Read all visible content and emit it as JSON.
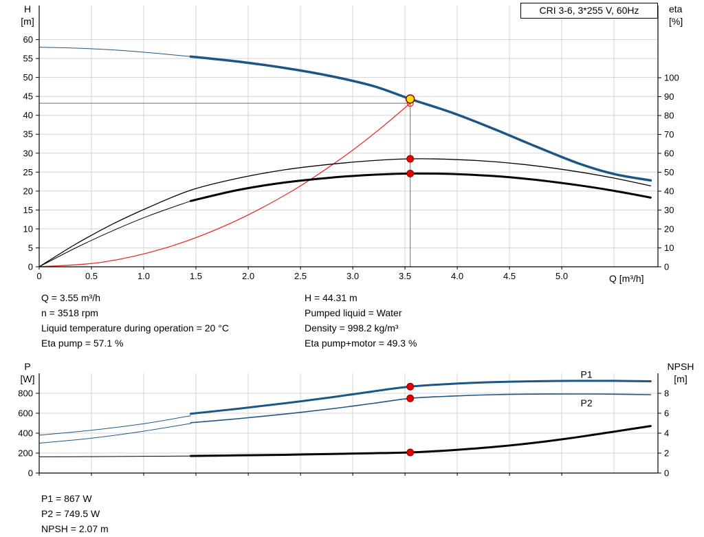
{
  "title_box": "CRI 3-6, 3*255 V, 60Hz",
  "colors": {
    "curve_blue": "#1c5687",
    "curve_red": "#e8302a",
    "curve_black": "#000000",
    "crosshair": "#6e6e6e",
    "grid": "#d3d3d3",
    "axis": "#000000"
  },
  "marker_styles": {
    "red": {
      "r": 5,
      "fill": "#e60000",
      "stroke": "#8b0000",
      "sw": 1
    },
    "yellow": {
      "r": 6,
      "fill": "#ffdf00",
      "stroke": "#8b0000",
      "sw": 1.5
    },
    "open_red": {
      "r": 4.5,
      "fill": "none",
      "stroke": "#e8302a",
      "sw": 1.3
    }
  },
  "chart_data": [
    {
      "type": "line",
      "title": "CRI 3-6, 3*255 V, 60Hz",
      "x_axis": {
        "label": "Q [m³/h]",
        "min": 0,
        "max": 5.92,
        "ticks": [
          0,
          0.5,
          1,
          1.5,
          2,
          2.5,
          3,
          3.5,
          4,
          4.5,
          5
        ],
        "tick_labels": [
          "0",
          "0.5",
          "1.0",
          "1.5",
          "2.0",
          "2.5",
          "3.0",
          "3.5",
          "4.0",
          "4.5",
          "5.0"
        ],
        "grid": [
          0.5,
          1,
          1.5,
          2,
          2.5,
          3,
          3.5,
          4,
          4.5,
          5,
          5.5
        ]
      },
      "y_left": {
        "label_lines": [
          "H",
          "[m]"
        ],
        "min": 0,
        "max": 69,
        "ticks": [
          0,
          5,
          10,
          15,
          20,
          25,
          30,
          35,
          40,
          45,
          50,
          55,
          60
        ],
        "grid": [
          5,
          10,
          15,
          20,
          25,
          30,
          35,
          40,
          45,
          50,
          55,
          60
        ]
      },
      "y_right": {
        "label_lines": [
          "eta",
          "[%]"
        ],
        "min": 0,
        "max": 138.2,
        "ticks": [
          0,
          10,
          20,
          30,
          40,
          50,
          60,
          70,
          80,
          90,
          100
        ]
      },
      "series": [
        {
          "name": "crosshair-horizontal-line",
          "axis": "left",
          "color": "#6e6e6e",
          "width": 1,
          "straight": true,
          "points": [
            [
              0,
              43.2
            ],
            [
              3.55,
              43.2
            ]
          ]
        },
        {
          "name": "crosshair-vertical-line",
          "axis": "left",
          "color": "#6e6e6e",
          "width": 1,
          "straight": true,
          "points": [
            [
              3.55,
              0
            ],
            [
              3.55,
              44.31
            ]
          ]
        },
        {
          "name": "system-curve",
          "axis": "left",
          "color": "#e8302a",
          "width": 1.3,
          "points": [
            [
              0,
              0
            ],
            [
              0.6,
              1.2
            ],
            [
              1.2,
              4.9
            ],
            [
              1.8,
              11.1
            ],
            [
              2.4,
              19.7
            ],
            [
              2.9,
              28.8
            ],
            [
              3.25,
              36.2
            ],
            [
              3.55,
              43.2
            ]
          ]
        },
        {
          "name": "eta-pump-curve",
          "axis": "right",
          "color": "#000000",
          "width": 1.3,
          "points": [
            [
              0,
              0
            ],
            [
              0.35,
              12
            ],
            [
              0.7,
              22.5
            ],
            [
              1.05,
              31.5
            ],
            [
              1.45,
              40.5
            ],
            [
              1.9,
              46.8
            ],
            [
              2.35,
              51.3
            ],
            [
              2.8,
              54.3
            ],
            [
              3.2,
              56.2
            ],
            [
              3.55,
              57.1
            ],
            [
              3.95,
              56.8
            ],
            [
              4.35,
              55.6
            ],
            [
              4.75,
              53.4
            ],
            [
              5.15,
              50.3
            ],
            [
              5.5,
              46.9
            ],
            [
              5.85,
              42.8
            ]
          ]
        },
        {
          "name": "eta-pump-motor-curve-lead",
          "axis": "right",
          "color": "#000000",
          "width": 1,
          "points": [
            [
              0,
              0
            ],
            [
              0.35,
              10
            ],
            [
              0.7,
              19
            ],
            [
              1.05,
              27
            ],
            [
              1.45,
              34.8
            ]
          ]
        },
        {
          "name": "eta-pump-motor-curve",
          "axis": "right",
          "color": "#000000",
          "width": 3,
          "points": [
            [
              1.45,
              34.8
            ],
            [
              1.9,
              40.6
            ],
            [
              2.35,
              44.6
            ],
            [
              2.8,
              47.2
            ],
            [
              3.2,
              48.7
            ],
            [
              3.55,
              49.3
            ],
            [
              3.95,
              49.1
            ],
            [
              4.35,
              48.0
            ],
            [
              4.75,
              46.0
            ],
            [
              5.15,
              43.2
            ],
            [
              5.5,
              40.2
            ],
            [
              5.85,
              36.6
            ]
          ]
        },
        {
          "name": "qh-curve-lead",
          "axis": "left",
          "color": "#1c5687",
          "width": 1,
          "points": [
            [
              0,
              58
            ],
            [
              0.4,
              57.7
            ],
            [
              0.8,
              57.1
            ],
            [
              1.15,
              56.3
            ],
            [
              1.45,
              55.5
            ]
          ]
        },
        {
          "name": "qh-curve",
          "axis": "left",
          "color": "#1c5687",
          "width": 3.5,
          "points": [
            [
              1.45,
              55.5
            ],
            [
              1.9,
              54.2
            ],
            [
              2.35,
              52.5
            ],
            [
              2.8,
              50.3
            ],
            [
              3.2,
              47.7
            ],
            [
              3.55,
              44.31
            ],
            [
              3.95,
              40.7
            ],
            [
              4.35,
              36.4
            ],
            [
              4.75,
              31.8
            ],
            [
              5.15,
              27.4
            ],
            [
              5.5,
              24.5
            ],
            [
              5.85,
              22.8
            ]
          ]
        }
      ],
      "markers": [
        {
          "name": "intersection-point",
          "axis": "left",
          "x": 3.55,
          "y": 43.2,
          "style": "open_red"
        },
        {
          "name": "eta-pump-duty-point",
          "axis": "right",
          "x": 3.55,
          "y": 57.1,
          "style": "red"
        },
        {
          "name": "eta-pump-motor-duty-point",
          "axis": "right",
          "x": 3.55,
          "y": 49.3,
          "style": "red"
        },
        {
          "name": "duty-point",
          "axis": "left",
          "x": 3.55,
          "y": 44.31,
          "style": "yellow",
          "interactable": true
        }
      ],
      "labels": []
    },
    {
      "type": "line",
      "title": "Power and NPSH curves",
      "x_axis": {
        "label": "",
        "min": 0,
        "max": 5.92,
        "ticks": [
          0,
          0.5,
          1,
          1.5,
          2,
          2.5,
          3,
          3.5,
          4,
          4.5,
          5
        ],
        "tick_labels": [],
        "grid": [
          0.5,
          1,
          1.5,
          2,
          2.5,
          3,
          3.5,
          4,
          4.5,
          5,
          5.5
        ]
      },
      "y_left": {
        "label_lines": [
          "P",
          "[W]"
        ],
        "min": 0,
        "max": 1000,
        "ticks": [
          0,
          200,
          400,
          600,
          800
        ],
        "grid": [
          200,
          400,
          600,
          800
        ]
      },
      "y_right": {
        "label_lines": [
          "NPSH",
          "[m]"
        ],
        "min": 0,
        "max": 10,
        "ticks": [
          0,
          2,
          4,
          6,
          8
        ]
      },
      "series": [
        {
          "name": "p2-curve-lead",
          "axis": "left",
          "color": "#1c5687",
          "width": 1,
          "points": [
            [
              0,
              300
            ],
            [
              0.5,
              350
            ],
            [
              1.0,
              420
            ],
            [
              1.45,
              497
            ]
          ]
        },
        {
          "name": "p2-curve",
          "axis": "left",
          "color": "#1c5687",
          "width": 1.6,
          "points": [
            [
              1.45,
              505
            ],
            [
              1.9,
              545
            ],
            [
              2.35,
              592
            ],
            [
              2.8,
              645
            ],
            [
              3.2,
              700
            ],
            [
              3.55,
              749.5
            ],
            [
              3.95,
              772
            ],
            [
              4.35,
              786
            ],
            [
              4.75,
              792
            ],
            [
              5.15,
              793
            ],
            [
              5.5,
              791
            ],
            [
              5.85,
              786
            ]
          ]
        },
        {
          "name": "p1-curve-lead",
          "axis": "left",
          "color": "#1c5687",
          "width": 1,
          "points": [
            [
              0,
              380
            ],
            [
              0.5,
              430
            ],
            [
              1.0,
              495
            ],
            [
              1.45,
              575
            ]
          ]
        },
        {
          "name": "p1-curve",
          "axis": "left",
          "color": "#1c5687",
          "width": 3,
          "points": [
            [
              1.45,
              595
            ],
            [
              1.9,
              645
            ],
            [
              2.35,
              700
            ],
            [
              2.8,
              760
            ],
            [
              3.2,
              820
            ],
            [
              3.55,
              867
            ],
            [
              3.95,
              895
            ],
            [
              4.35,
              912
            ],
            [
              4.75,
              921
            ],
            [
              5.15,
              925
            ],
            [
              5.5,
              925
            ],
            [
              5.85,
              921
            ]
          ]
        },
        {
          "name": "npsh-curve-lead",
          "axis": "right",
          "color": "#000000",
          "width": 1,
          "points": [
            [
              0,
              1.63
            ],
            [
              0.5,
              1.65
            ],
            [
              1.0,
              1.68
            ],
            [
              1.45,
              1.71
            ]
          ]
        },
        {
          "name": "npsh-curve",
          "axis": "right",
          "color": "#000000",
          "width": 3,
          "points": [
            [
              1.45,
              1.72
            ],
            [
              1.9,
              1.77
            ],
            [
              2.35,
              1.83
            ],
            [
              2.8,
              1.92
            ],
            [
              3.2,
              1.99
            ],
            [
              3.55,
              2.07
            ],
            [
              3.95,
              2.3
            ],
            [
              4.35,
              2.62
            ],
            [
              4.75,
              3.05
            ],
            [
              5.15,
              3.6
            ],
            [
              5.5,
              4.15
            ],
            [
              5.85,
              4.72
            ]
          ]
        }
      ],
      "markers": [
        {
          "name": "p1-duty-point",
          "axis": "left",
          "x": 3.55,
          "y": 867,
          "style": "red"
        },
        {
          "name": "p2-duty-point",
          "axis": "left",
          "x": 3.55,
          "y": 749.5,
          "style": "red"
        },
        {
          "name": "npsh-duty-point",
          "axis": "right",
          "x": 3.55,
          "y": 2.07,
          "style": "red"
        }
      ],
      "labels": [
        {
          "name": "p1-label",
          "text": "P1",
          "x": 5.18,
          "y": 955,
          "axis": "left",
          "color": "#1c5687"
        },
        {
          "name": "p2-label",
          "text": "P2",
          "x": 5.18,
          "y": 668,
          "axis": "left",
          "color": "#1c5687"
        }
      ]
    }
  ],
  "info_top": {
    "left": [
      "Q = 3.55 m³/h",
      "n = 3518 rpm",
      "Liquid temperature during operation = 20 °C",
      "Eta pump = 57.1 %"
    ],
    "right": [
      "H = 44.31 m",
      "Pumped liquid = Water",
      "Density = 998.2 kg/m³",
      "Eta pump+motor = 49.3 %"
    ]
  },
  "info_bottom": [
    "P1 = 867 W",
    "P2 = 749.5 W",
    "NPSH = 2.07 m"
  ]
}
